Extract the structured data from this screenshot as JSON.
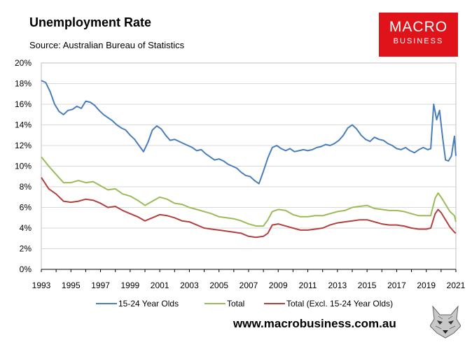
{
  "header": {
    "title": "Unemployment Rate",
    "source": "Source: Australian Bureau of Statistics"
  },
  "logo": {
    "line1": "MACRO",
    "line2": "BUSINESS",
    "color": "#e0131b"
  },
  "footer": {
    "website": "www.macrobusiness.com.au"
  },
  "chart_data": {
    "type": "line",
    "title": "Unemployment Rate",
    "xlabel": "",
    "ylabel": "",
    "xlim": [
      1993,
      2021
    ],
    "ylim": [
      0,
      20
    ],
    "y_ticks": [
      0,
      2,
      4,
      6,
      8,
      10,
      12,
      14,
      16,
      18,
      20
    ],
    "y_tick_labels": [
      "0%",
      "2%",
      "4%",
      "6%",
      "8%",
      "10%",
      "12%",
      "14%",
      "16%",
      "18%",
      "20%"
    ],
    "x_ticks": [
      1993,
      1995,
      1997,
      1999,
      2001,
      2003,
      2005,
      2007,
      2009,
      2011,
      2013,
      2015,
      2017,
      2019,
      2021
    ],
    "x_tick_labels": [
      "1993",
      "1995",
      "1997",
      "1999",
      "2001",
      "2003",
      "2005",
      "2007",
      "2009",
      "2011",
      "2013",
      "2015",
      "2017",
      "2019",
      "2021"
    ],
    "grid": "horizontal",
    "legend_position": "bottom",
    "series": [
      {
        "name": "15-24 Year Olds",
        "color": "#4a7ebb",
        "x": [
          1993.0,
          1993.3,
          1993.6,
          1993.9,
          1994.2,
          1994.5,
          1994.8,
          1995.1,
          1995.4,
          1995.7,
          1996.0,
          1996.3,
          1996.6,
          1996.9,
          1997.2,
          1997.5,
          1997.8,
          1998.1,
          1998.4,
          1998.7,
          1999.0,
          1999.3,
          1999.6,
          1999.9,
          2000.2,
          2000.5,
          2000.8,
          2001.1,
          2001.4,
          2001.7,
          2002.0,
          2002.3,
          2002.6,
          2002.9,
          2003.2,
          2003.5,
          2003.8,
          2004.1,
          2004.4,
          2004.7,
          2005.0,
          2005.3,
          2005.6,
          2005.9,
          2006.2,
          2006.5,
          2006.8,
          2007.1,
          2007.4,
          2007.7,
          2008.0,
          2008.3,
          2008.6,
          2008.9,
          2009.2,
          2009.5,
          2009.8,
          2010.1,
          2010.4,
          2010.7,
          2011.0,
          2011.3,
          2011.6,
          2011.9,
          2012.2,
          2012.5,
          2012.8,
          2013.1,
          2013.4,
          2013.7,
          2014.0,
          2014.3,
          2014.6,
          2014.9,
          2015.2,
          2015.5,
          2015.8,
          2016.1,
          2016.4,
          2016.7,
          2017.0,
          2017.3,
          2017.6,
          2017.9,
          2018.2,
          2018.5,
          2018.8,
          2019.1,
          2019.3,
          2019.5,
          2019.7,
          2019.9,
          2020.1,
          2020.3,
          2020.5,
          2020.7,
          2020.9,
          2021.0
        ],
        "values": [
          18.3,
          18.1,
          17.2,
          16.0,
          15.3,
          15.0,
          15.4,
          15.5,
          15.8,
          15.6,
          16.3,
          16.2,
          15.9,
          15.4,
          15.0,
          14.7,
          14.4,
          14.0,
          13.7,
          13.5,
          13.0,
          12.6,
          12.0,
          11.4,
          12.3,
          13.5,
          13.9,
          13.6,
          13.0,
          12.5,
          12.6,
          12.4,
          12.2,
          12.0,
          11.8,
          11.5,
          11.6,
          11.2,
          10.9,
          10.6,
          10.7,
          10.5,
          10.2,
          10.0,
          9.8,
          9.4,
          9.1,
          9.0,
          8.6,
          8.3,
          9.5,
          10.8,
          11.8,
          12.0,
          11.7,
          11.5,
          11.7,
          11.4,
          11.5,
          11.6,
          11.5,
          11.6,
          11.8,
          11.9,
          12.1,
          12.0,
          12.2,
          12.5,
          13.0,
          13.7,
          14.0,
          13.6,
          13.0,
          12.6,
          12.4,
          12.8,
          12.6,
          12.5,
          12.2,
          12.0,
          11.7,
          11.6,
          11.8,
          11.5,
          11.3,
          11.6,
          11.8,
          11.6,
          11.7,
          16.0,
          14.5,
          15.4,
          12.8,
          10.6,
          10.5,
          11.0,
          12.9,
          11.0
        ]
      },
      {
        "name": "Total",
        "color": "#9bbb59",
        "x": [
          1993.0,
          1993.5,
          1994.0,
          1994.5,
          1995.0,
          1995.5,
          1996.0,
          1996.5,
          1997.0,
          1997.5,
          1998.0,
          1998.5,
          1999.0,
          1999.5,
          2000.0,
          2000.5,
          2001.0,
          2001.5,
          2002.0,
          2002.5,
          2003.0,
          2003.5,
          2004.0,
          2004.5,
          2005.0,
          2005.5,
          2006.0,
          2006.5,
          2007.0,
          2007.5,
          2008.0,
          2008.3,
          2008.6,
          2009.0,
          2009.5,
          2010.0,
          2010.5,
          2011.0,
          2011.5,
          2012.0,
          2012.5,
          2013.0,
          2013.5,
          2014.0,
          2014.5,
          2015.0,
          2015.5,
          2016.0,
          2016.5,
          2017.0,
          2017.5,
          2018.0,
          2018.5,
          2019.0,
          2019.3,
          2019.6,
          2019.8,
          2020.0,
          2020.3,
          2020.6,
          2020.9,
          2021.0
        ],
        "values": [
          10.9,
          10.0,
          9.2,
          8.4,
          8.4,
          8.6,
          8.4,
          8.5,
          8.1,
          7.7,
          7.8,
          7.3,
          7.1,
          6.7,
          6.2,
          6.6,
          7.0,
          6.8,
          6.4,
          6.3,
          6.0,
          5.8,
          5.6,
          5.4,
          5.1,
          5.0,
          4.9,
          4.7,
          4.4,
          4.2,
          4.2,
          4.8,
          5.6,
          5.8,
          5.7,
          5.3,
          5.1,
          5.1,
          5.2,
          5.2,
          5.4,
          5.6,
          5.7,
          6.0,
          6.1,
          6.2,
          5.9,
          5.8,
          5.7,
          5.7,
          5.6,
          5.4,
          5.2,
          5.2,
          5.2,
          6.9,
          7.4,
          7.0,
          6.3,
          5.6,
          5.2,
          4.6
        ]
      },
      {
        "name": "Total (Excl. 15-24 Year Olds)",
        "color": "#b2403e",
        "x": [
          1993.0,
          1993.5,
          1994.0,
          1994.5,
          1995.0,
          1995.5,
          1996.0,
          1996.5,
          1997.0,
          1997.5,
          1998.0,
          1998.5,
          1999.0,
          1999.5,
          2000.0,
          2000.5,
          2001.0,
          2001.5,
          2002.0,
          2002.5,
          2003.0,
          2003.5,
          2004.0,
          2004.5,
          2005.0,
          2005.5,
          2006.0,
          2006.5,
          2007.0,
          2007.5,
          2008.0,
          2008.3,
          2008.6,
          2009.0,
          2009.5,
          2010.0,
          2010.5,
          2011.0,
          2011.5,
          2012.0,
          2012.5,
          2013.0,
          2013.5,
          2014.0,
          2014.5,
          2015.0,
          2015.5,
          2016.0,
          2016.5,
          2017.0,
          2017.5,
          2018.0,
          2018.5,
          2019.0,
          2019.3,
          2019.6,
          2019.8,
          2020.0,
          2020.3,
          2020.6,
          2020.9,
          2021.0
        ],
        "values": [
          8.9,
          7.8,
          7.3,
          6.6,
          6.5,
          6.6,
          6.8,
          6.7,
          6.4,
          6.0,
          6.1,
          5.7,
          5.4,
          5.1,
          4.7,
          5.0,
          5.3,
          5.2,
          5.0,
          4.7,
          4.6,
          4.3,
          4.0,
          3.9,
          3.8,
          3.7,
          3.6,
          3.5,
          3.2,
          3.1,
          3.2,
          3.5,
          4.3,
          4.4,
          4.2,
          4.0,
          3.8,
          3.8,
          3.9,
          4.0,
          4.3,
          4.5,
          4.6,
          4.7,
          4.8,
          4.8,
          4.6,
          4.4,
          4.3,
          4.3,
          4.2,
          4.0,
          3.9,
          3.9,
          4.0,
          5.4,
          5.8,
          5.5,
          4.8,
          4.1,
          3.6,
          3.5
        ]
      }
    ]
  }
}
